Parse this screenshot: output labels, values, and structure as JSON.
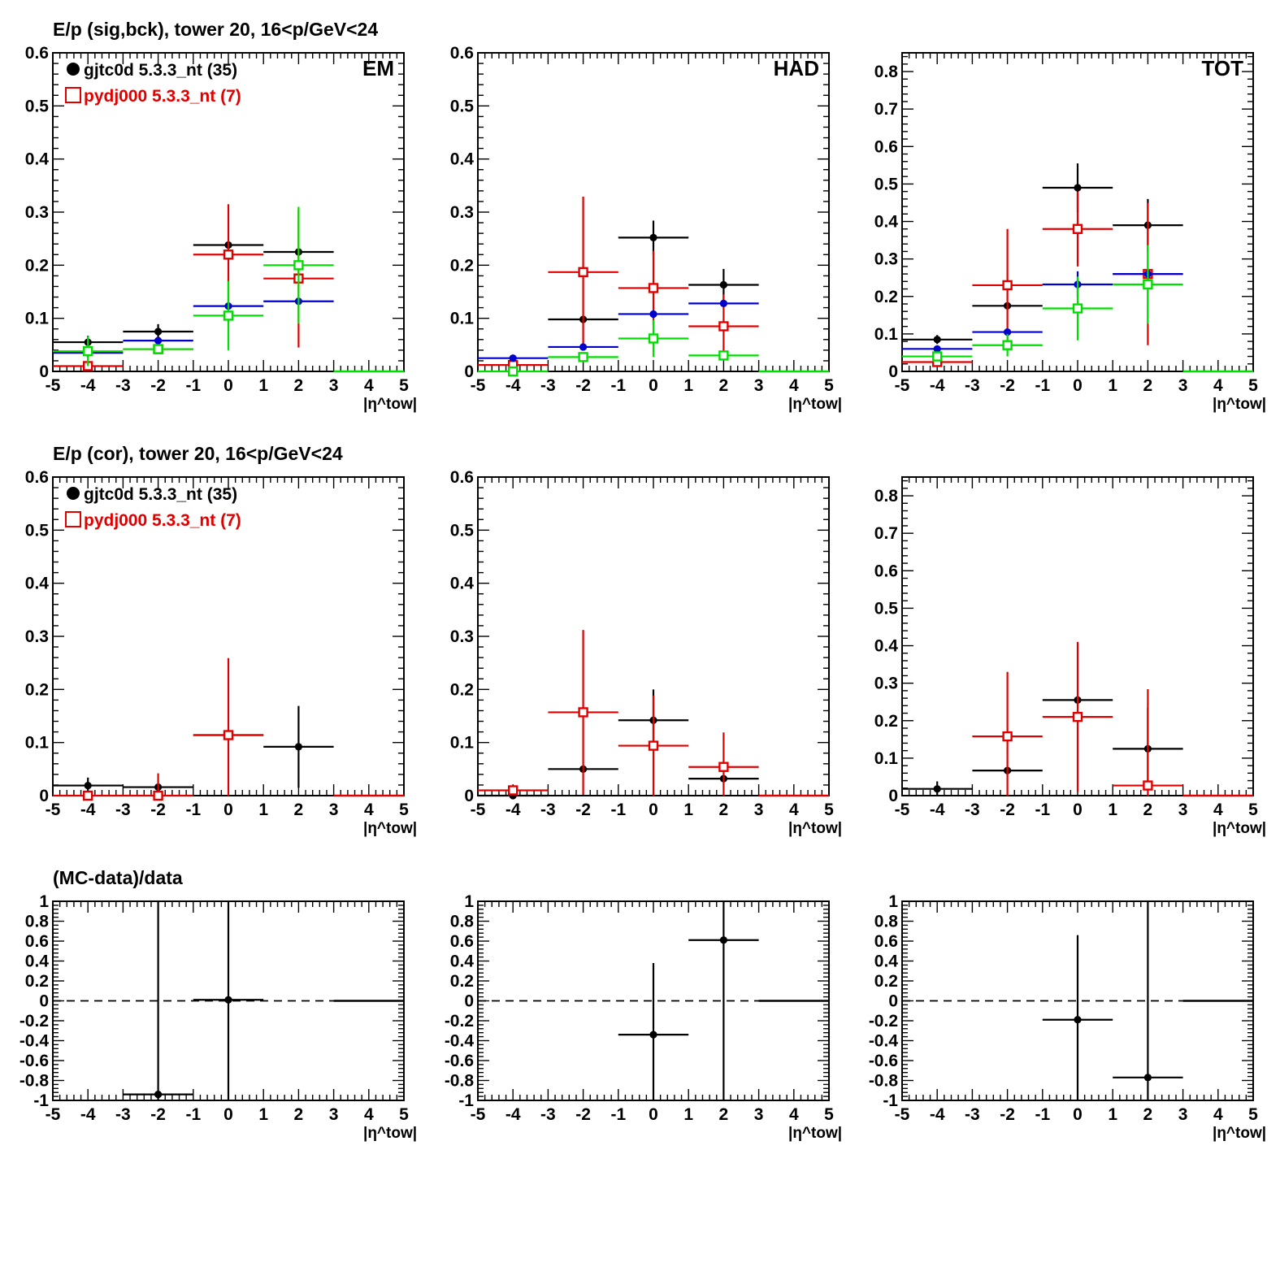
{
  "figure": {
    "row_titles": [
      "E/p (sig,bck), tower 20, 16<p/GeV<24",
      "E/p (cor), tower 20, 16<p/GeV<24",
      "(MC-data)/data"
    ]
  },
  "colors": {
    "black": "#000000",
    "red": "#e00000",
    "blue": "#0000cc",
    "green": "#00dd00"
  },
  "chart_data": [
    {
      "type": "scatter",
      "panel": "row1-EM",
      "title": "E/p (sig,bck), tower 20, 16<p/GeV<24",
      "label": "EM",
      "xlabel": "|η^tow|",
      "xlim": [
        -5,
        5
      ],
      "ylim": [
        0,
        0.6
      ],
      "yticks": [
        0,
        0.1,
        0.2,
        0.3,
        0.4,
        0.5,
        0.6
      ],
      "yticks_labels": [
        "0",
        "0.1",
        "0.2",
        "0.3",
        "0.4",
        "0.5",
        "0.6"
      ],
      "legend": [
        {
          "label": "gjtc0d 5.3.3_nt (35)",
          "color": "#000000",
          "marker": "filled-circle"
        },
        {
          "label": "pydj000 5.3.3_nt (7)",
          "color": "#e00000",
          "marker": "open-square"
        }
      ],
      "series": [
        {
          "color": "#000000",
          "marker": "dot",
          "x": [
            -4,
            -2,
            0,
            2
          ],
          "y": [
            0.055,
            0.075,
            0.238,
            0.225
          ],
          "yerr": [
            0.012,
            0.014,
            0.0,
            0.0
          ]
        },
        {
          "color": "#e00000",
          "marker": "open-square",
          "x": [
            -4,
            -2,
            0,
            2
          ],
          "y": [
            0.01,
            0.042,
            0.22,
            0.175
          ],
          "yerr": [
            0.0,
            0.0,
            0.095,
            0.13
          ]
        },
        {
          "color": "#0000cc",
          "marker": "dot",
          "x": [
            -4,
            -2,
            0,
            2
          ],
          "y": [
            0.035,
            0.058,
            0.123,
            0.132
          ],
          "yerr": [
            0.0,
            0.0,
            0.0,
            0.0
          ]
        },
        {
          "color": "#00dd00",
          "marker": "open-square",
          "x": [
            -4,
            -2,
            0,
            2
          ],
          "y": [
            0.038,
            0.042,
            0.105,
            0.2
          ],
          "yerr": [
            0.028,
            0.0,
            0.065,
            0.11
          ]
        }
      ],
      "zero_from": 3
    },
    {
      "type": "scatter",
      "panel": "row1-HAD",
      "label": "HAD",
      "xlabel": "|η^tow|",
      "xlim": [
        -5,
        5
      ],
      "ylim": [
        0,
        0.6
      ],
      "yticks": [
        0,
        0.1,
        0.2,
        0.3,
        0.4,
        0.5,
        0.6
      ],
      "yticks_labels": [
        "0",
        "0.1",
        "0.2",
        "0.3",
        "0.4",
        "0.5",
        "0.6"
      ],
      "series": [
        {
          "color": "#000000",
          "marker": "dot",
          "x": [
            -2,
            0,
            2
          ],
          "y": [
            0.098,
            0.252,
            0.163
          ],
          "yerr": [
            0.0,
            0.032,
            0.03
          ]
        },
        {
          "color": "#e00000",
          "marker": "open-square",
          "x": [
            -4,
            -2,
            0,
            2
          ],
          "y": [
            0.012,
            0.187,
            0.157,
            0.085
          ],
          "yerr": [
            0.0,
            0.142,
            0.07,
            0.06
          ]
        },
        {
          "color": "#0000cc",
          "marker": "dot",
          "x": [
            -4,
            -2,
            0,
            2
          ],
          "y": [
            0.025,
            0.046,
            0.108,
            0.128
          ],
          "yerr": [
            0.0,
            0.0,
            0.0,
            0.0
          ]
        },
        {
          "color": "#00dd00",
          "marker": "open-square",
          "x": [
            -4,
            -2,
            0,
            2
          ],
          "y": [
            0.0,
            0.027,
            0.062,
            0.03
          ],
          "yerr": [
            0.0,
            0.0,
            0.035,
            0.0
          ]
        }
      ],
      "zero_from": 3
    },
    {
      "type": "scatter",
      "panel": "row1-TOT",
      "label": "TOT",
      "xlabel": "|η^tow|",
      "xlim": [
        -5,
        5
      ],
      "ylim": [
        0,
        0.85
      ],
      "yticks": [
        0,
        0.1,
        0.2,
        0.3,
        0.4,
        0.5,
        0.6,
        0.7,
        0.8
      ],
      "yticks_labels": [
        "0",
        "0.1",
        "0.2",
        "0.3",
        "0.4",
        "0.5",
        "0.6",
        "0.7",
        "0.8"
      ],
      "series": [
        {
          "color": "#000000",
          "marker": "dot",
          "x": [
            -4,
            -2,
            0,
            2
          ],
          "y": [
            0.085,
            0.175,
            0.49,
            0.39
          ],
          "yerr": [
            0.012,
            0.0,
            0.065,
            0.07
          ]
        },
        {
          "color": "#e00000",
          "marker": "open-square",
          "x": [
            -4,
            -2,
            0,
            2
          ],
          "y": [
            0.025,
            0.23,
            0.38,
            0.26
          ],
          "yerr": [
            0.0,
            0.15,
            0.1,
            0.19
          ]
        },
        {
          "color": "#0000cc",
          "marker": "dot",
          "x": [
            -4,
            -2,
            0,
            2
          ],
          "y": [
            0.06,
            0.105,
            0.232,
            0.26
          ],
          "yerr": [
            0.0,
            0.0,
            0.035,
            0.0
          ]
        },
        {
          "color": "#00dd00",
          "marker": "open-square",
          "x": [
            -4,
            -2,
            0,
            2
          ],
          "y": [
            0.04,
            0.07,
            0.168,
            0.232
          ],
          "yerr": [
            0.0,
            0.03,
            0.085,
            0.105
          ]
        }
      ],
      "zero_from": 3
    },
    {
      "type": "scatter",
      "panel": "row2-EM",
      "title": "E/p (cor), tower 20, 16<p/GeV<24",
      "xlabel": "|η^tow|",
      "xlim": [
        -5,
        5
      ],
      "ylim": [
        0,
        0.6
      ],
      "yticks": [
        0,
        0.1,
        0.2,
        0.3,
        0.4,
        0.5,
        0.6
      ],
      "yticks_labels": [
        "0",
        "0.1",
        "0.2",
        "0.3",
        "0.4",
        "0.5",
        "0.6"
      ],
      "legend": [
        {
          "label": "gjtc0d 5.3.3_nt (35)",
          "color": "#000000",
          "marker": "filled-circle"
        },
        {
          "label": "pydj000 5.3.3_nt (7)",
          "color": "#e00000",
          "marker": "open-square"
        }
      ],
      "series": [
        {
          "color": "#000000",
          "marker": "dot",
          "x": [
            -4,
            -2,
            0,
            2
          ],
          "y": [
            0.019,
            0.016,
            0.114,
            0.092
          ],
          "yerr": [
            0.015,
            0.0,
            0.0,
            0.077
          ]
        },
        {
          "color": "#e00000",
          "marker": "open-square",
          "x": [
            -4,
            -2,
            0
          ],
          "y": [
            0.0,
            0.0,
            0.114
          ],
          "yerr": [
            0.0,
            0.042,
            0.145
          ]
        }
      ],
      "zero_from": 3
    },
    {
      "type": "scatter",
      "panel": "row2-HAD",
      "xlabel": "|η^tow|",
      "xlim": [
        -5,
        5
      ],
      "ylim": [
        0,
        0.6
      ],
      "yticks": [
        0,
        0.1,
        0.2,
        0.3,
        0.4,
        0.5,
        0.6
      ],
      "yticks_labels": [
        "0",
        "0.1",
        "0.2",
        "0.3",
        "0.4",
        "0.5",
        "0.6"
      ],
      "series": [
        {
          "color": "#000000",
          "marker": "dot",
          "x": [
            -4,
            -2,
            0,
            2
          ],
          "y": [
            0.0,
            0.05,
            0.142,
            0.032
          ],
          "yerr": [
            0.0,
            0.0,
            0.058,
            0.0
          ]
        },
        {
          "color": "#e00000",
          "marker": "open-square",
          "x": [
            -4,
            -2,
            0,
            2
          ],
          "y": [
            0.01,
            0.157,
            0.094,
            0.054
          ],
          "yerr": [
            0.0,
            0.155,
            0.094,
            0.065
          ]
        }
      ],
      "zero_from": 3
    },
    {
      "type": "scatter",
      "panel": "row2-TOT",
      "xlabel": "|η^tow|",
      "xlim": [
        -5,
        5
      ],
      "ylim": [
        0,
        0.85
      ],
      "yticks": [
        0,
        0.1,
        0.2,
        0.3,
        0.4,
        0.5,
        0.6,
        0.7,
        0.8
      ],
      "yticks_labels": [
        "0",
        "0.1",
        "0.2",
        "0.3",
        "0.4",
        "0.5",
        "0.6",
        "0.7",
        "0.8"
      ],
      "series": [
        {
          "color": "#000000",
          "marker": "dot",
          "x": [
            -4,
            -2,
            0,
            2
          ],
          "y": [
            0.018,
            0.067,
            0.255,
            0.125
          ],
          "yerr": [
            0.02,
            0.0,
            0.0,
            0.11
          ]
        },
        {
          "color": "#e00000",
          "marker": "open-square",
          "x": [
            -2,
            0,
            2
          ],
          "y": [
            0.158,
            0.21,
            0.027
          ],
          "yerr": [
            0.172,
            0.2,
            0.257
          ]
        }
      ],
      "zero_from": 3
    },
    {
      "type": "scatter",
      "panel": "row3-EM",
      "title": "(MC-data)/data",
      "xlabel": "|η^tow|",
      "xlim": [
        -5,
        5
      ],
      "ylim": [
        -1,
        1
      ],
      "yticks": [
        -1,
        -0.8,
        -0.6,
        -0.4,
        -0.2,
        0,
        0.2,
        0.4,
        0.6,
        0.8,
        1
      ],
      "yticks_labels": [
        "-1",
        "-0.8",
        "-0.6",
        "-0.4",
        "-0.2",
        "0",
        "0.2",
        "0.4",
        "0.6",
        "0.8",
        "1"
      ],
      "dashed_zero": true,
      "series": [
        {
          "color": "#000000",
          "marker": "dot",
          "x": [
            -2,
            0
          ],
          "y": [
            -0.94,
            0.01
          ],
          "yerr": [
            2.0,
            2.0
          ]
        }
      ],
      "zero_from": 3
    },
    {
      "type": "scatter",
      "panel": "row3-HAD",
      "xlabel": "|η^tow|",
      "xlim": [
        -5,
        5
      ],
      "ylim": [
        -1,
        1
      ],
      "yticks": [
        -1,
        -0.8,
        -0.6,
        -0.4,
        -0.2,
        0,
        0.2,
        0.4,
        0.6,
        0.8,
        1
      ],
      "yticks_labels": [
        "-1",
        "-0.8",
        "-0.6",
        "-0.4",
        "-0.2",
        "0",
        "0.2",
        "0.4",
        "0.6",
        "0.8",
        "1"
      ],
      "dashed_zero": true,
      "series": [
        {
          "color": "#000000",
          "marker": "dot",
          "x": [
            0,
            2
          ],
          "y": [
            -0.34,
            0.61
          ],
          "yerr": [
            0.72,
            2.0
          ]
        }
      ],
      "zero_from": 3
    },
    {
      "type": "scatter",
      "panel": "row3-TOT",
      "xlabel": "|η^tow|",
      "xlim": [
        -5,
        5
      ],
      "ylim": [
        -1,
        1
      ],
      "yticks": [
        -1,
        -0.8,
        -0.6,
        -0.4,
        -0.2,
        0,
        0.2,
        0.4,
        0.6,
        0.8,
        1
      ],
      "yticks_labels": [
        "-1",
        "-0.8",
        "-0.6",
        "-0.4",
        "-0.2",
        "0",
        "0.2",
        "0.4",
        "0.6",
        "0.8",
        "1"
      ],
      "dashed_zero": true,
      "series": [
        {
          "color": "#000000",
          "marker": "dot",
          "x": [
            0,
            2
          ],
          "y": [
            -0.19,
            -0.77
          ],
          "yerr": [
            0.85,
            2.0
          ]
        }
      ],
      "zero_from": 3
    }
  ]
}
